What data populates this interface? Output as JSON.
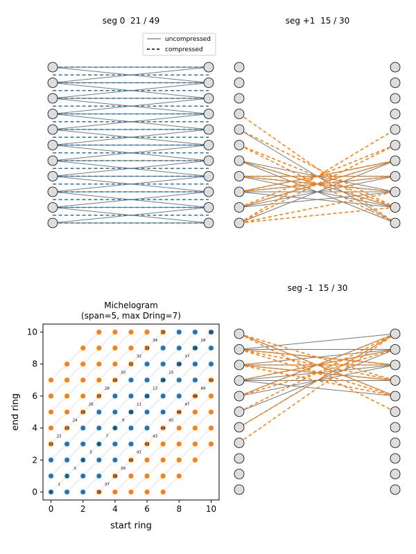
{
  "colors": {
    "blue": "#1f77b4",
    "orange": "#ff7f0e",
    "gray": "#777777",
    "node_fill": "#dddddd",
    "edge_line": "#000000",
    "diag_line": "#cccccc"
  },
  "chart_data": [
    {
      "type": "network",
      "title": "seg 0  21 / 49",
      "legend": {
        "placement": "top-right",
        "entries": [
          {
            "label": "uncompressed",
            "style": "solid",
            "color": "#777777"
          },
          {
            "label": "compressed",
            "style": "dashed",
            "color": "#000000"
          }
        ]
      },
      "left_nodes": [
        0,
        1,
        2,
        3,
        4,
        5,
        6,
        7,
        8,
        9,
        10
      ],
      "right_nodes": [
        0,
        1,
        2,
        3,
        4,
        5,
        6,
        7,
        8,
        9,
        10
      ],
      "uncompressed_edges": [
        [
          0,
          0
        ],
        [
          0,
          1
        ],
        [
          1,
          0
        ],
        [
          1,
          1
        ],
        [
          1,
          2
        ],
        [
          2,
          1
        ],
        [
          2,
          2
        ],
        [
          2,
          3
        ],
        [
          3,
          2
        ],
        [
          3,
          3
        ],
        [
          3,
          4
        ],
        [
          4,
          3
        ],
        [
          4,
          4
        ],
        [
          4,
          5
        ],
        [
          5,
          4
        ],
        [
          5,
          5
        ],
        [
          5,
          6
        ],
        [
          6,
          5
        ],
        [
          6,
          6
        ],
        [
          6,
          7
        ],
        [
          7,
          6
        ],
        [
          7,
          7
        ],
        [
          7,
          8
        ],
        [
          8,
          7
        ],
        [
          8,
          8
        ],
        [
          8,
          9
        ],
        [
          9,
          8
        ],
        [
          9,
          9
        ],
        [
          9,
          10
        ],
        [
          10,
          9
        ],
        [
          10,
          10
        ]
      ],
      "compressed_positions": [
        0,
        0.5,
        1,
        1.5,
        2,
        2.5,
        3,
        3.5,
        4,
        4.5,
        5,
        5.5,
        6,
        6.5,
        7,
        7.5,
        8,
        8.5,
        9,
        9.5,
        10
      ],
      "compressed_color": "#1f77b4"
    },
    {
      "type": "network",
      "title": "seg +1  15 / 30",
      "left_nodes": [
        0,
        1,
        2,
        3,
        4,
        5,
        6,
        7,
        8,
        9,
        10
      ],
      "right_nodes": [
        0,
        1,
        2,
        3,
        4,
        5,
        6,
        7,
        8,
        9,
        10
      ],
      "uncompressed_edges": [
        [
          4,
          10
        ],
        [
          6,
          8
        ],
        [
          6,
          9
        ],
        [
          6,
          10
        ],
        [
          7,
          7
        ],
        [
          7,
          8
        ],
        [
          7,
          9
        ],
        [
          8,
          6
        ],
        [
          8,
          7
        ],
        [
          8,
          8
        ],
        [
          8,
          9
        ],
        [
          9,
          6
        ],
        [
          9,
          7
        ],
        [
          9,
          8
        ],
        [
          10,
          6
        ]
      ],
      "compressed_edges": [
        [
          3,
          10
        ],
        [
          4,
          9
        ],
        [
          5,
          10
        ],
        [
          5,
          9
        ],
        [
          6,
          9
        ],
        [
          7,
          8
        ],
        [
          7,
          7
        ],
        [
          8,
          7
        ],
        [
          8,
          6
        ],
        [
          9,
          6
        ],
        [
          9,
          5
        ],
        [
          10,
          5
        ],
        [
          10,
          4
        ],
        [
          10,
          8
        ],
        [
          10,
          9
        ]
      ],
      "compressed_color": "#ff7f0e"
    },
    {
      "type": "scatter",
      "title": "Michelogram\n(span=5, max Dring=7)",
      "title_lines": [
        "Michelogram",
        "(span=5, max Dring=7)"
      ],
      "xlabel": "start ring",
      "ylabel": "end ring",
      "xlim": [
        -0.5,
        10.5
      ],
      "ylim": [
        -0.5,
        10.5
      ],
      "xticks": [
        0,
        2,
        4,
        6,
        8,
        10
      ],
      "yticks": [
        0,
        2,
        4,
        6,
        8,
        10
      ],
      "grid": false,
      "orange_points": [
        [
          0,
          3
        ],
        [
          0,
          4
        ],
        [
          0,
          5
        ],
        [
          0,
          6
        ],
        [
          0,
          7
        ],
        [
          1,
          4
        ],
        [
          1,
          5
        ],
        [
          1,
          6
        ],
        [
          1,
          7
        ],
        [
          1,
          8
        ],
        [
          2,
          5
        ],
        [
          2,
          6
        ],
        [
          2,
          7
        ],
        [
          2,
          8
        ],
        [
          2,
          9
        ],
        [
          3,
          6
        ],
        [
          3,
          7
        ],
        [
          3,
          8
        ],
        [
          3,
          9
        ],
        [
          3,
          10
        ],
        [
          4,
          7
        ],
        [
          4,
          8
        ],
        [
          4,
          9
        ],
        [
          4,
          10
        ],
        [
          5,
          8
        ],
        [
          5,
          9
        ],
        [
          5,
          10
        ],
        [
          6,
          9
        ],
        [
          6,
          10
        ],
        [
          7,
          10
        ],
        [
          3,
          0
        ],
        [
          4,
          0
        ],
        [
          5,
          0
        ],
        [
          6,
          0
        ],
        [
          7,
          0
        ],
        [
          4,
          1
        ],
        [
          5,
          1
        ],
        [
          6,
          1
        ],
        [
          7,
          1
        ],
        [
          8,
          1
        ],
        [
          5,
          2
        ],
        [
          6,
          2
        ],
        [
          7,
          2
        ],
        [
          8,
          2
        ],
        [
          9,
          2
        ],
        [
          6,
          3
        ],
        [
          7,
          3
        ],
        [
          8,
          3
        ],
        [
          9,
          3
        ],
        [
          10,
          3
        ],
        [
          7,
          4
        ],
        [
          8,
          4
        ],
        [
          9,
          4
        ],
        [
          10,
          4
        ],
        [
          8,
          5
        ],
        [
          9,
          5
        ],
        [
          10,
          5
        ],
        [
          9,
          6
        ],
        [
          10,
          6
        ],
        [
          10,
          7
        ]
      ],
      "blue_points": [
        [
          0,
          0
        ],
        [
          0,
          1
        ],
        [
          0,
          2
        ],
        [
          1,
          0
        ],
        [
          1,
          1
        ],
        [
          1,
          2
        ],
        [
          1,
          3
        ],
        [
          2,
          0
        ],
        [
          2,
          1
        ],
        [
          2,
          2
        ],
        [
          2,
          3
        ],
        [
          2,
          4
        ],
        [
          3,
          1
        ],
        [
          3,
          2
        ],
        [
          3,
          3
        ],
        [
          3,
          4
        ],
        [
          3,
          5
        ],
        [
          4,
          2
        ],
        [
          4,
          3
        ],
        [
          4,
          4
        ],
        [
          4,
          5
        ],
        [
          4,
          6
        ],
        [
          5,
          3
        ],
        [
          5,
          4
        ],
        [
          5,
          5
        ],
        [
          5,
          6
        ],
        [
          5,
          7
        ],
        [
          6,
          4
        ],
        [
          6,
          5
        ],
        [
          6,
          6
        ],
        [
          6,
          7
        ],
        [
          6,
          8
        ],
        [
          7,
          5
        ],
        [
          7,
          6
        ],
        [
          7,
          7
        ],
        [
          7,
          8
        ],
        [
          7,
          9
        ],
        [
          8,
          6
        ],
        [
          8,
          7
        ],
        [
          8,
          8
        ],
        [
          8,
          9
        ],
        [
          8,
          10
        ],
        [
          9,
          7
        ],
        [
          9,
          8
        ],
        [
          9,
          9
        ],
        [
          9,
          10
        ],
        [
          10,
          8
        ],
        [
          10,
          9
        ],
        [
          10,
          10
        ]
      ],
      "sinogram_labels": [
        {
          "n": "0",
          "x": 0,
          "y": 0
        },
        {
          "n": "1",
          "x": 0.5,
          "y": 0.5
        },
        {
          "n": "2",
          "x": 1,
          "y": 1
        },
        {
          "n": "3",
          "x": 1.5,
          "y": 1.5
        },
        {
          "n": "4",
          "x": 2,
          "y": 2
        },
        {
          "n": "5",
          "x": 2.5,
          "y": 2.5
        },
        {
          "n": "6",
          "x": 3,
          "y": 3
        },
        {
          "n": "7",
          "x": 3.5,
          "y": 3.5
        },
        {
          "n": "8",
          "x": 4,
          "y": 4
        },
        {
          "n": "9",
          "x": 4.5,
          "y": 4.5
        },
        {
          "n": "10",
          "x": 5,
          "y": 5
        },
        {
          "n": "11",
          "x": 5.5,
          "y": 5.5
        },
        {
          "n": "12",
          "x": 6,
          "y": 6
        },
        {
          "n": "13",
          "x": 6.5,
          "y": 6.5
        },
        {
          "n": "14",
          "x": 7,
          "y": 7
        },
        {
          "n": "15",
          "x": 7.5,
          "y": 7.5
        },
        {
          "n": "16",
          "x": 8,
          "y": 8
        },
        {
          "n": "17",
          "x": 8.5,
          "y": 8.5
        },
        {
          "n": "18",
          "x": 9,
          "y": 9
        },
        {
          "n": "19",
          "x": 9.5,
          "y": 9.5
        },
        {
          "n": "20",
          "x": 10,
          "y": 10
        },
        {
          "n": "21",
          "x": 0,
          "y": 3
        },
        {
          "n": "22",
          "x": 0.5,
          "y": 3.5
        },
        {
          "n": "23",
          "x": 1,
          "y": 4
        },
        {
          "n": "24",
          "x": 1.5,
          "y": 4.5
        },
        {
          "n": "25",
          "x": 2,
          "y": 5
        },
        {
          "n": "26",
          "x": 2.5,
          "y": 5.5
        },
        {
          "n": "27",
          "x": 3,
          "y": 6
        },
        {
          "n": "28",
          "x": 3.5,
          "y": 6.5
        },
        {
          "n": "29",
          "x": 4,
          "y": 7
        },
        {
          "n": "30",
          "x": 4.5,
          "y": 7.5
        },
        {
          "n": "31",
          "x": 5,
          "y": 8
        },
        {
          "n": "32",
          "x": 5.5,
          "y": 8.5
        },
        {
          "n": "33",
          "x": 6,
          "y": 9
        },
        {
          "n": "34",
          "x": 6.5,
          "y": 9.5
        },
        {
          "n": "35",
          "x": 7,
          "y": 10
        },
        {
          "n": "36",
          "x": 3,
          "y": 0
        },
        {
          "n": "37",
          "x": 3.5,
          "y": 0.5
        },
        {
          "n": "38",
          "x": 4,
          "y": 1
        },
        {
          "n": "39",
          "x": 4.5,
          "y": 1.5
        },
        {
          "n": "40",
          "x": 5,
          "y": 2
        },
        {
          "n": "41",
          "x": 5.5,
          "y": 2.5
        },
        {
          "n": "42",
          "x": 6,
          "y": 3
        },
        {
          "n": "43",
          "x": 6.5,
          "y": 3.5
        },
        {
          "n": "44",
          "x": 7,
          "y": 4
        },
        {
          "n": "45",
          "x": 7.5,
          "y": 4.5
        },
        {
          "n": "46",
          "x": 8,
          "y": 5
        },
        {
          "n": "47",
          "x": 8.5,
          "y": 5.5
        },
        {
          "n": "48",
          "x": 9,
          "y": 6
        },
        {
          "n": "49",
          "x": 9.5,
          "y": 6.5
        },
        {
          "n": "50",
          "x": 10,
          "y": 7
        }
      ]
    },
    {
      "type": "network",
      "title": "seg -1  15 / 30",
      "left_nodes": [
        0,
        1,
        2,
        3,
        4,
        5,
        6,
        7,
        8,
        9,
        10
      ],
      "right_nodes": [
        0,
        1,
        2,
        3,
        4,
        5,
        6,
        7,
        8,
        9,
        10
      ],
      "uncompressed_edges": [
        [
          0,
          4
        ],
        [
          1,
          2
        ],
        [
          1,
          1
        ],
        [
          1,
          0
        ],
        [
          2,
          3
        ],
        [
          2,
          2
        ],
        [
          2,
          1
        ],
        [
          3,
          4
        ],
        [
          3,
          3
        ],
        [
          3,
          2
        ],
        [
          3,
          1
        ],
        [
          4,
          2
        ],
        [
          4,
          0
        ],
        [
          5,
          1
        ],
        [
          6,
          0
        ]
      ],
      "compressed_edges": [
        [
          0,
          3
        ],
        [
          0,
          4
        ],
        [
          0,
          5
        ],
        [
          1,
          4
        ],
        [
          1,
          3
        ],
        [
          1,
          2
        ],
        [
          2,
          4
        ],
        [
          2,
          3
        ],
        [
          2,
          2
        ],
        [
          3,
          1
        ],
        [
          4,
          1
        ],
        [
          4,
          0
        ],
        [
          5,
          0
        ],
        [
          6,
          0
        ],
        [
          7,
          0
        ]
      ],
      "compressed_color": "#ff7f0e"
    }
  ]
}
